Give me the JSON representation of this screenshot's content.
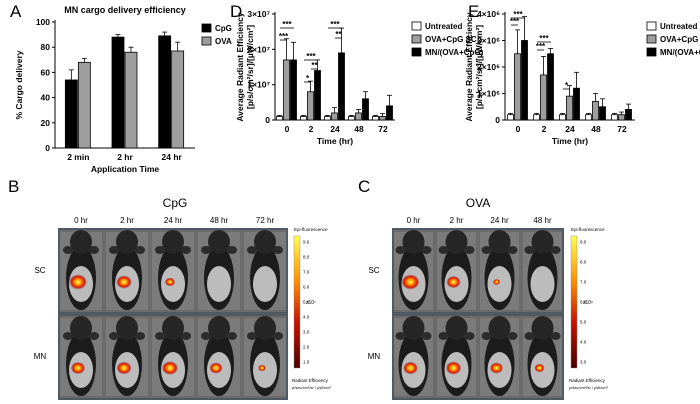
{
  "panel_letters": [
    "A",
    "D",
    "E",
    "B",
    "C"
  ],
  "chart_data": [
    {
      "panel": "A",
      "type": "bar",
      "title": "MN cargo delivery efficiency",
      "xlabel": "Application Time",
      "ylabel": "% Cargo delivery",
      "categories": [
        "2 min",
        "2 hr",
        "24 hr"
      ],
      "ylim": [
        0,
        100
      ],
      "yticks": [
        "0",
        "20",
        "40",
        "60",
        "80",
        "100"
      ],
      "legend_position": "top-right",
      "series": [
        {
          "name": "CpG",
          "color": "#000000",
          "values": [
            54,
            88,
            89
          ],
          "errors": [
            8,
            2,
            3
          ]
        },
        {
          "name": "OVA",
          "color": "#9e9e9e",
          "values": [
            68,
            76,
            77
          ],
          "errors": [
            3,
            4,
            7
          ]
        }
      ]
    },
    {
      "panel": "D",
      "type": "bar",
      "title": "",
      "xlabel": "Time (hr)",
      "ylabel_line1": "Average Radiant Efficiency",
      "ylabel_line2": "[p/s/cm²/sr]/[µW/cm²]",
      "categories": [
        "0",
        "2",
        "24",
        "48",
        "72"
      ],
      "ylim": [
        0,
        30000000
      ],
      "yticks": [
        "0",
        "1×10⁷",
        "2×10⁷",
        "3×10⁷"
      ],
      "legend_position": "top-right",
      "series": [
        {
          "name": "Untreated",
          "color": "#ffffff",
          "values": [
            1000000,
            1000000,
            1000000,
            1000000,
            1000000
          ],
          "errors": [
            300000,
            300000,
            300000,
            300000,
            300000
          ]
        },
        {
          "name": "OVA+CpG SC",
          "color": "#9e9e9e",
          "values": [
            17000000,
            8000000,
            2000000,
            2000000,
            1000000
          ],
          "errors": [
            6000000,
            3000000,
            1500000,
            1000000,
            800000
          ]
        },
        {
          "name": "MN/(OVA+CpG)",
          "color": "#000000",
          "values": [
            17000000,
            14000000,
            19000000,
            6000000,
            4000000
          ],
          "errors": [
            5000000,
            3000000,
            7000000,
            2000000,
            3000000
          ]
        }
      ],
      "annotations": [
        "***",
        "***",
        "*",
        "***",
        "**",
        "***",
        "**"
      ]
    },
    {
      "panel": "E",
      "type": "bar",
      "title": "",
      "xlabel": "Time (hr)",
      "ylabel_line1": "Average Radiant Efficiency",
      "ylabel_line2": "[p/s/cm²/sr]/[µW/cm²]",
      "categories": [
        "0",
        "2",
        "24",
        "48",
        "72"
      ],
      "ylim": [
        0,
        4000000
      ],
      "yticks": [
        "0",
        "1×10⁶",
        "2×10⁶",
        "3×10⁶",
        "4×10⁶"
      ],
      "legend_position": "top-right",
      "series": [
        {
          "name": "Untreated",
          "color": "#ffffff",
          "values": [
            200000,
            200000,
            200000,
            200000,
            200000
          ],
          "errors": [
            50000,
            50000,
            50000,
            50000,
            50000
          ]
        },
        {
          "name": "OVA+CpG SC",
          "color": "#9e9e9e",
          "values": [
            2500000,
            1700000,
            900000,
            700000,
            200000
          ],
          "errors": [
            900000,
            700000,
            400000,
            300000,
            100000
          ]
        },
        {
          "name": "MN/(OVA+CpG)",
          "color": "#000000",
          "values": [
            3000000,
            2500000,
            1200000,
            500000,
            400000
          ],
          "errors": [
            900000,
            200000,
            600000,
            300000,
            200000
          ]
        }
      ],
      "annotations": [
        "***",
        "***",
        "***",
        "***",
        "*"
      ]
    }
  ],
  "imaging": [
    {
      "panel": "B",
      "title": "CpG",
      "times": [
        "0 hr",
        "2 hr",
        "24 hr",
        "48 hr",
        "72 hr"
      ],
      "rows": [
        "SC",
        "MN"
      ],
      "colorbar_title": "Epi-fluorescence",
      "colorbar_ticks": [
        "9.0",
        "8.0",
        "7.0",
        "6.0",
        "5.0",
        "4.0",
        "3.0",
        "2.0",
        "1.0"
      ],
      "colorbar_exponent": "x10⁷",
      "colorbar_footer": "Radiant Efficiency",
      "colorbar_units": "p/sec/cm²/sr / µW/cm²",
      "signal": {
        "SC": [
          1.0,
          0.8,
          0.35,
          0.0,
          0.0
        ],
        "MN": [
          0.7,
          0.75,
          0.85,
          0.6,
          0.15
        ]
      }
    },
    {
      "panel": "C",
      "title": "OVA",
      "times": [
        "0 hr",
        "2 hr",
        "24 hr",
        "48 hr"
      ],
      "rows": [
        "SC",
        "MN"
      ],
      "colorbar_title": "Epi-fluorescence",
      "colorbar_ticks": [
        "9.0",
        "8.0",
        "7.0",
        "6.0",
        "5.0",
        "4.0",
        "3.0"
      ],
      "colorbar_exponent": "x10⁶",
      "colorbar_footer": "Radiant Efficiency",
      "colorbar_units": "p/sec/cm²/sr / µW/cm²",
      "signal": {
        "SC": [
          1.0,
          0.7,
          0.1,
          0.0
        ],
        "MN": [
          0.75,
          0.8,
          0.6,
          0.35
        ]
      }
    }
  ]
}
